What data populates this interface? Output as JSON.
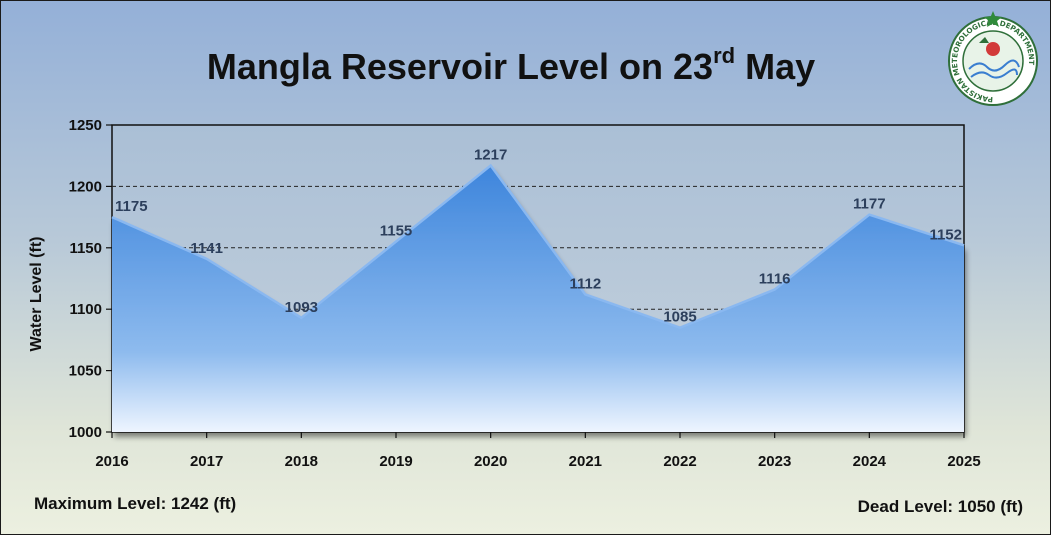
{
  "title": {
    "main": "Mangla Reservoir Level on 23",
    "sup": "rd",
    "tail": " May"
  },
  "footer": {
    "max_level": "Maximum Level: 1242 (ft)",
    "dead_level": "Dead Level: 1050 (ft)"
  },
  "logo": {
    "icon": "pakistan-meteorological-department-logo",
    "ring_text": "PAKISTAN METEOROLOGICAL DEPARTMENT",
    "color": "#2f6f3a"
  },
  "chart_data": {
    "type": "area",
    "x": [
      "2016",
      "2017",
      "2018",
      "2019",
      "2020",
      "2021",
      "2022",
      "2023",
      "2024",
      "2025"
    ],
    "values": [
      1175,
      1141,
      1093,
      1155,
      1217,
      1112,
      1085,
      1116,
      1177,
      1152
    ],
    "data_labels": [
      "1175",
      "1141",
      "1093",
      "1155",
      "1217",
      "1112",
      "1085",
      "1116",
      "1177",
      "1152"
    ],
    "ylabel": "Water Level (ft)",
    "ylim": [
      1000,
      1250
    ],
    "yticks": [
      "1000",
      "1050",
      "1100",
      "1150",
      "1200",
      "1250"
    ],
    "gridlines": [
      1100,
      1150,
      1200
    ],
    "grid": "dashed horizontal",
    "fill_color": "#4a8fe0",
    "line_color": "#8ab8f0"
  }
}
